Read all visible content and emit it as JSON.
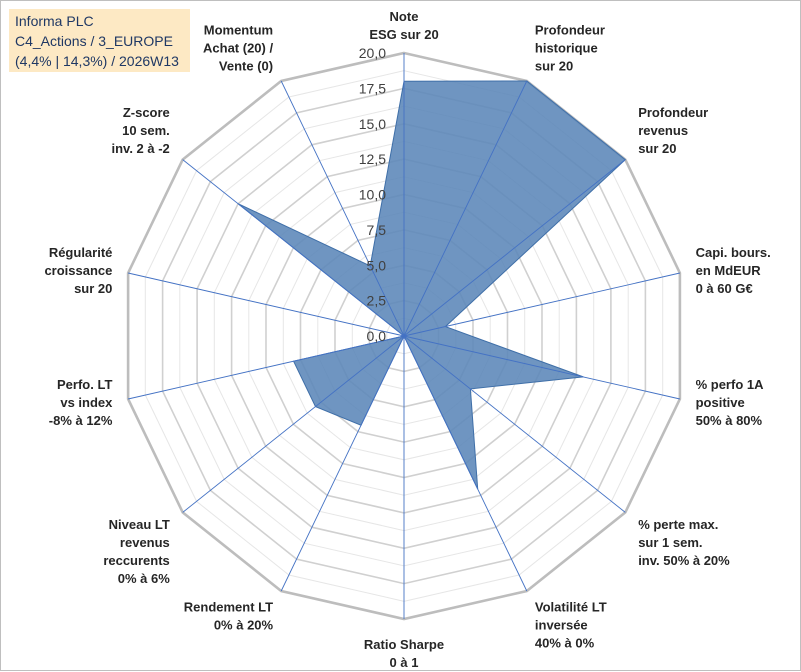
{
  "header": {
    "title_lines": [
      "Informa PLC",
      "C4_Actions / 3_EUROPE",
      "(4,4% | 14,3%) / 2026W13"
    ]
  },
  "chart_data": {
    "type": "radar",
    "title": "",
    "rmax": 20,
    "rmin": 0,
    "tick_values": [
      0,
      2.5,
      5,
      7.5,
      10,
      12.5,
      15,
      17.5,
      20
    ],
    "tick_labels": [
      "0,0",
      "2,5",
      "5,0",
      "7,5",
      "10,0",
      "12,5",
      "15,0",
      "17,5",
      "20,0"
    ],
    "categories": [
      [
        "Note",
        "ESG sur 20"
      ],
      [
        "Profondeur",
        "historique",
        "sur 20"
      ],
      [
        "Profondeur",
        "revenus",
        "sur 20"
      ],
      [
        "Capi. bours.",
        "en MdEUR",
        "0 à 60 G€"
      ],
      [
        "% perfo 1A",
        "positive",
        "50% à 80%"
      ],
      [
        "% perte max.",
        "sur 1 sem.",
        "inv. 50% à 20%"
      ],
      [
        "Volatilité LT",
        "inversée",
        "40% à 0%"
      ],
      [
        "Ratio Sharpe",
        "0 à 1"
      ],
      [
        "Rendement LT",
        "0% à 20%"
      ],
      [
        "Niveau LT",
        "revenus",
        "reccurents",
        "0% à 6%"
      ],
      [
        "Perfo. LT",
        "vs index",
        "-8% à 12%"
      ],
      [
        "Régularité",
        "croissance",
        "sur 20"
      ],
      [
        "Z-score",
        "10 sem.",
        "inv. 2 à -2"
      ],
      [
        "Momentum",
        "Achat (20) /",
        "Vente (0)"
      ]
    ],
    "values": [
      18,
      20,
      20,
      3,
      13,
      6,
      12,
      0,
      7,
      8,
      8,
      0,
      15,
      5.5
    ],
    "colors": {
      "fill": "#5b86b8",
      "stroke": "#3f6fa8",
      "grid": "#c0c0c0",
      "spoke": "#4472c4"
    },
    "grid": true,
    "legend": "none"
  }
}
